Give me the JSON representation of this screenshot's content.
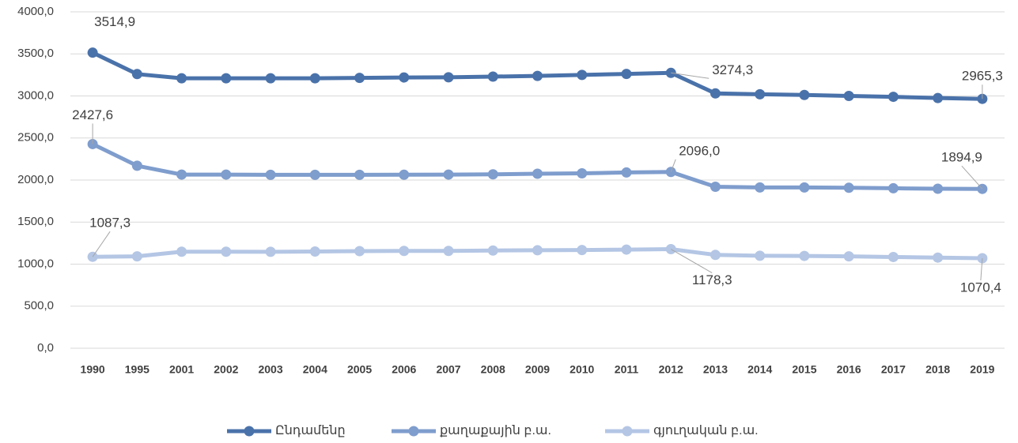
{
  "chart_data": {
    "type": "line",
    "categories": [
      "1990",
      "1995",
      "2001",
      "2002",
      "2003",
      "2004",
      "2005",
      "2006",
      "2007",
      "2008",
      "2009",
      "2010",
      "2011",
      "2012",
      "2013",
      "2014",
      "2015",
      "2016",
      "2017",
      "2018",
      "2019"
    ],
    "series": [
      {
        "name": "Ընդամենը",
        "color": "#4a72aa",
        "values": [
          3514.9,
          3260,
          3210,
          3210,
          3210,
          3210,
          3215,
          3220,
          3222,
          3230,
          3238,
          3250,
          3262,
          3274.3,
          3030,
          3020,
          3012,
          3000,
          2990,
          2975,
          2965.3
        ],
        "value_labels": [
          "3514,9",
          null,
          null,
          null,
          null,
          null,
          null,
          null,
          null,
          null,
          null,
          null,
          null,
          "3274,3",
          null,
          null,
          null,
          null,
          null,
          null,
          "2965,3"
        ]
      },
      {
        "name": "քաղաքային բ.ա.",
        "color": "#7f9dcd",
        "values": [
          2427.6,
          2170,
          2065,
          2065,
          2062,
          2062,
          2062,
          2063,
          2065,
          2068,
          2075,
          2080,
          2090,
          2096.0,
          1920,
          1912,
          1912,
          1908,
          1902,
          1897,
          1894.9
        ],
        "value_labels": [
          "2427,6",
          null,
          null,
          null,
          null,
          null,
          null,
          null,
          null,
          null,
          null,
          null,
          null,
          "2096,0",
          null,
          null,
          null,
          null,
          null,
          null,
          "1894,9"
        ]
      },
      {
        "name": "գյուղական բ.ա.",
        "color": "#b4c6e4",
        "values": [
          1087.3,
          1093,
          1148,
          1148,
          1147,
          1150,
          1155,
          1157,
          1157,
          1162,
          1165,
          1168,
          1173,
          1178.3,
          1110,
          1100,
          1098,
          1093,
          1085,
          1078,
          1070.4
        ],
        "value_labels": [
          "1087,3",
          null,
          null,
          null,
          null,
          null,
          null,
          null,
          null,
          null,
          null,
          null,
          null,
          "1178,3",
          null,
          null,
          null,
          null,
          null,
          null,
          "1070,4"
        ]
      }
    ],
    "ylim": [
      0,
      4000
    ],
    "yticks": [
      {
        "value": 0,
        "label": "0,0"
      },
      {
        "value": 500,
        "label": "500,0"
      },
      {
        "value": 1000,
        "label": "1000,0"
      },
      {
        "value": 1500,
        "label": "1500,0"
      },
      {
        "value": 2000,
        "label": "2000,0"
      },
      {
        "value": 2500,
        "label": "2500,0"
      },
      {
        "value": 3000,
        "label": "3000,0"
      },
      {
        "value": 3500,
        "label": "3500,0"
      },
      {
        "value": 4000,
        "label": "4000,0"
      }
    ],
    "grid": true,
    "legend": "bottom"
  }
}
